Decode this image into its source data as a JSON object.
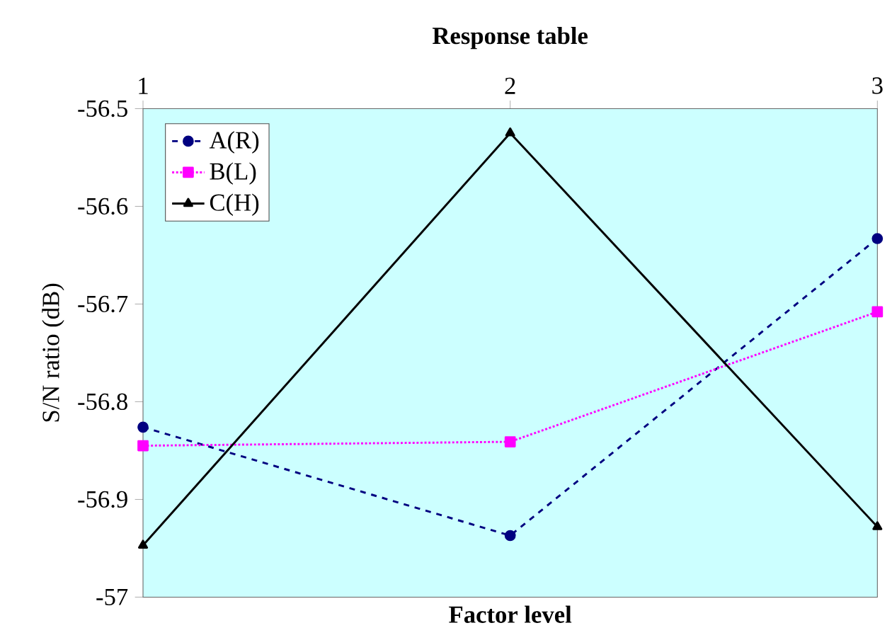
{
  "chart_data": {
    "type": "line",
    "title": "Response table",
    "xlabel": "Factor level",
    "ylabel": "S/N ratio (dB)",
    "categories": [
      "1",
      "2",
      "3"
    ],
    "series": [
      {
        "name": "A(R)",
        "color": "#000080",
        "marker": "circle",
        "line_style": "dashed",
        "values": [
          -56.826,
          -56.937,
          -56.633
        ]
      },
      {
        "name": "B(L)",
        "color": "#ff00ff",
        "marker": "square",
        "line_style": "dotted",
        "values": [
          -56.845,
          -56.841,
          -56.708
        ]
      },
      {
        "name": "C(H)",
        "color": "#000000",
        "marker": "triangle",
        "line_style": "solid",
        "values": [
          -56.947,
          -56.525,
          -56.928
        ]
      }
    ],
    "ylim": [
      -57,
      -56.5
    ],
    "yticks": [
      -57,
      -56.9,
      -56.8,
      -56.7,
      -56.6,
      -56.5
    ],
    "legend": "top left",
    "grid": false
  }
}
